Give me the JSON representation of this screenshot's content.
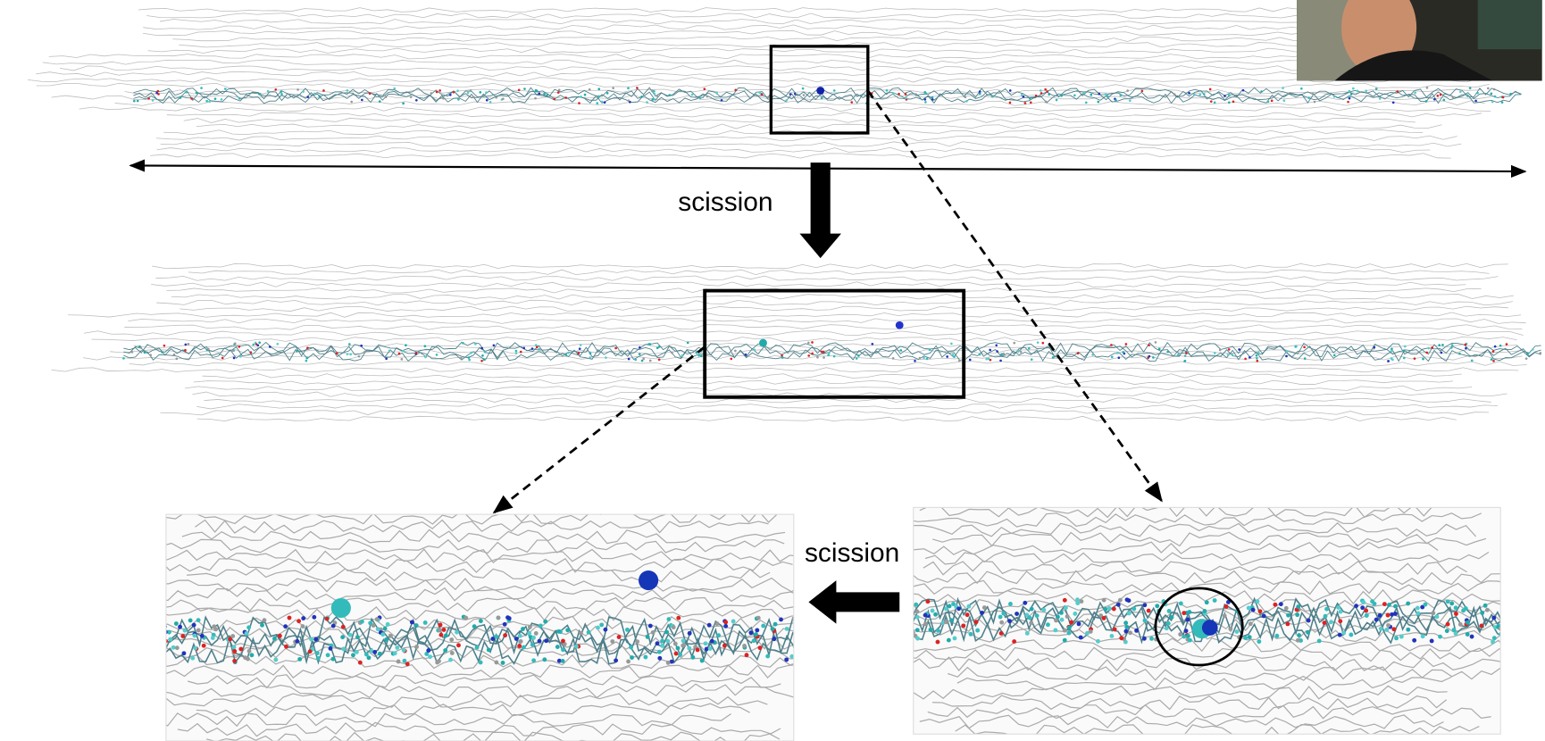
{
  "annotations": [
    {
      "text": "scission"
    },
    {
      "text": "scission"
    }
  ]
}
